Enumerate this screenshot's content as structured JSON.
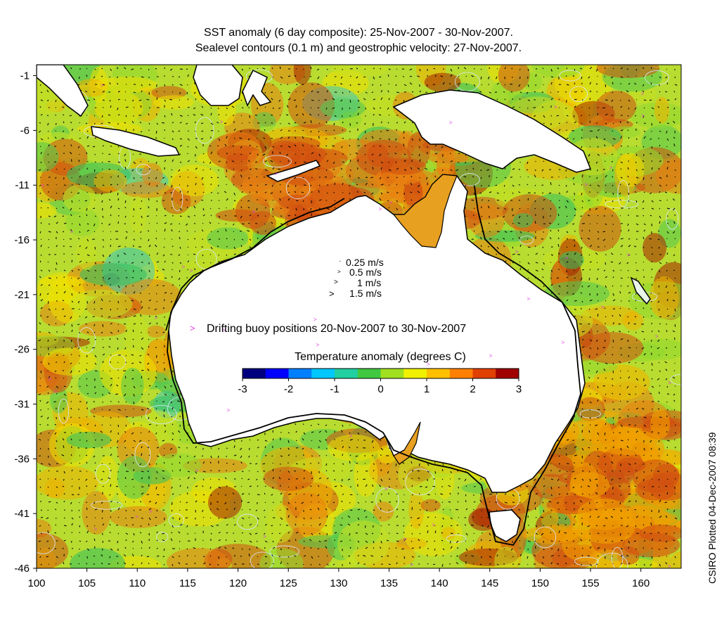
{
  "title": {
    "line1": "SST anomaly (6 day composite): 25-Nov-2007 - 30-Nov-2007.",
    "line2": "Sealevel contours (0.1 m) and geostrophic velocity: 27-Nov-2007."
  },
  "side_note": "CSIRO Plotted 04-Dec-2007 08:39",
  "axes": {
    "x_ticks": [
      "100",
      "105",
      "110",
      "115",
      "120",
      "125",
      "130",
      "135",
      "140",
      "145",
      "150",
      "155",
      "160"
    ],
    "y_ticks": [
      "-1",
      "-6",
      "-11",
      "-16",
      "-21",
      "-26",
      "-31",
      "-36",
      "-41",
      "-46"
    ],
    "lon_range": [
      100,
      164
    ],
    "lat_range": [
      -46,
      0
    ]
  },
  "velocity_legend": [
    {
      "label": "0.25 m/s",
      "speed": 0.25
    },
    {
      "label": "0.5 m/s",
      "speed": 0.5
    },
    {
      "label": "1 m/s",
      "speed": 1
    },
    {
      "label": "1.5 m/s",
      "speed": 1.5
    }
  ],
  "buoy_legend": {
    "marker": ">",
    "label": "Drifting buoy positions 20-Nov-2007 to 30-Nov-2007",
    "color": "#e040e0"
  },
  "colorbar": {
    "title": "Temperature anomaly (degrees C)",
    "ticks": [
      "-3",
      "-2",
      "-1",
      "0",
      "1",
      "2",
      "3"
    ],
    "range": [
      -3,
      3
    ],
    "colors": [
      "#00007f",
      "#0000ff",
      "#0080ff",
      "#00c8ff",
      "#20d0a0",
      "#40c840",
      "#a0e020",
      "#f0f000",
      "#ffc000",
      "#ff8000",
      "#e04000",
      "#a00000"
    ]
  },
  "colors": {
    "land": "#ffffff",
    "coast": "#000000",
    "ocean_warm": "#e88a10",
    "ocean_mild": "#c8d820",
    "ocean_cool": "#40c060",
    "contour": "#d8e8ff"
  }
}
